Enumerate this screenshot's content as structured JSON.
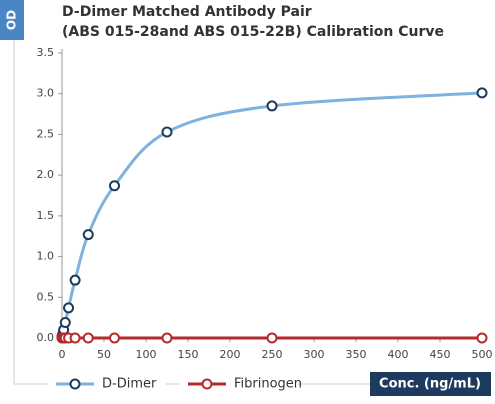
{
  "chart_data": {
    "type": "line",
    "title": "D-Dimer Matched Antibody Pair",
    "subtitle": "(ABS 015-28and ABS 015-22B) Calibration Curve",
    "xlabel": "Conc. (ng/mL)",
    "ylabel": "OD",
    "x": [
      0,
      0.98,
      1.95,
      3.9,
      7.8,
      15.6,
      31.25,
      62.5,
      125,
      250,
      500
    ],
    "series": [
      {
        "name": "D-Dimer",
        "color": "#7fb2de",
        "marker_color": "#1f3a5f",
        "values": [
          0.02,
          0.05,
          0.1,
          0.19,
          0.37,
          0.71,
          1.27,
          1.87,
          2.53,
          2.85,
          3.01
        ]
      },
      {
        "name": "Fibrinogen",
        "color": "#b52a2a",
        "marker_color": "#b52a2a",
        "values": [
          0,
          0,
          0,
          0,
          0,
          0,
          0,
          0,
          0,
          0,
          0
        ]
      }
    ],
    "xlim": [
      0,
      500
    ],
    "xticks": [
      0,
      50,
      100,
      150,
      200,
      250,
      300,
      350,
      400,
      450,
      500
    ],
    "ylim": [
      0,
      3.5
    ],
    "yticks": [
      {
        "value": 0,
        "label": "0.0"
      },
      0.5,
      {
        "value": 1,
        "label": "1.0"
      },
      1.5,
      {
        "value": 2,
        "label": "2.0"
      },
      2.5,
      {
        "value": 3,
        "label": "3.0"
      },
      3.5
    ],
    "grid": false,
    "legend": "bottom"
  }
}
